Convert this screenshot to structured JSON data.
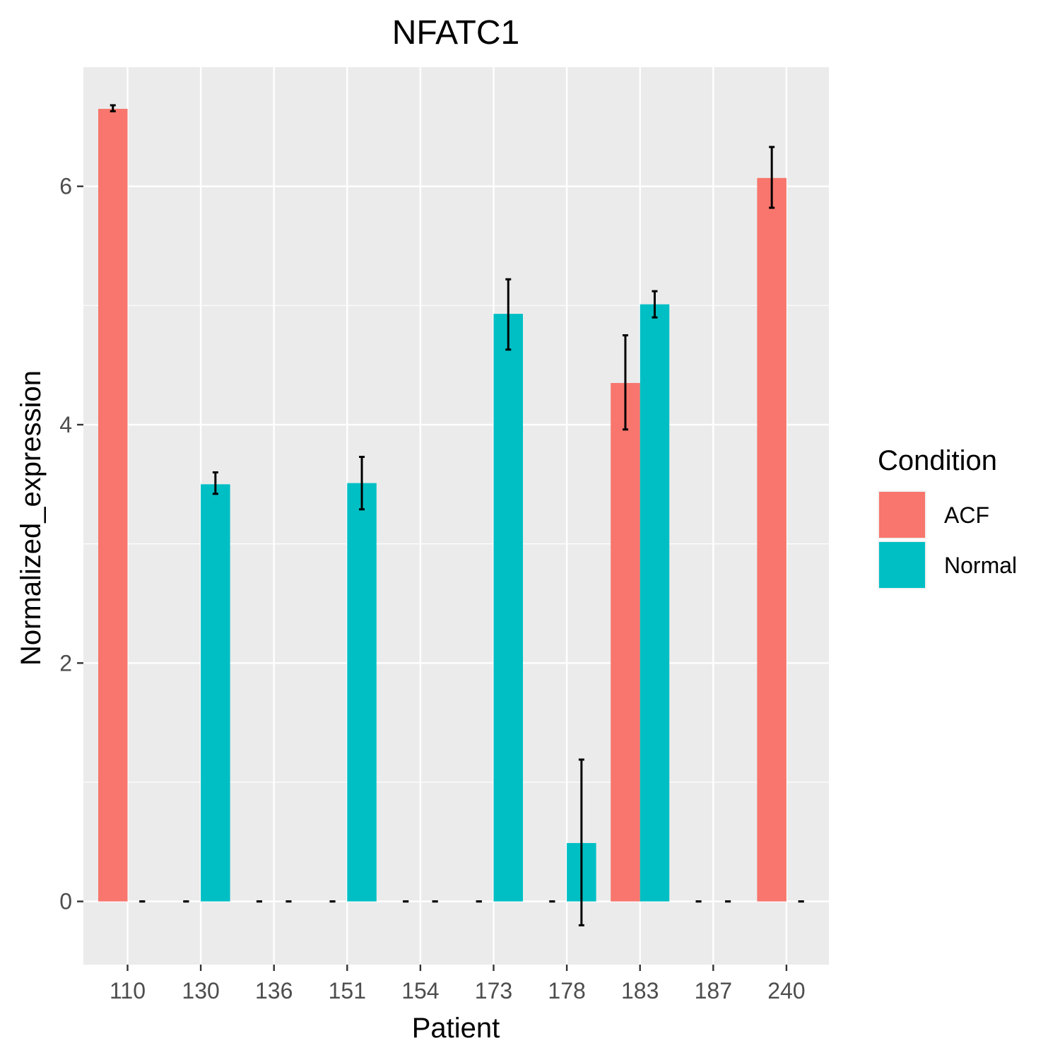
{
  "chart_data": {
    "type": "bar",
    "title": "NFATC1",
    "xlabel": "Patient",
    "ylabel": "Normalized_expression",
    "ylim": [
      -0.53,
      7.0
    ],
    "yticks": [
      0,
      2,
      4,
      6
    ],
    "grid": true,
    "legend": {
      "title": "Condition",
      "position": "right"
    },
    "categories": [
      "110",
      "130",
      "136",
      "151",
      "154",
      "173",
      "178",
      "183",
      "187",
      "240"
    ],
    "series": [
      {
        "name": "ACF",
        "color": "#F8766D",
        "values": [
          6.65,
          0,
          0,
          0,
          0,
          0,
          0,
          4.35,
          0,
          6.07
        ],
        "err_low": [
          6.63,
          0,
          0,
          0,
          0,
          0,
          0,
          3.96,
          0,
          5.82
        ],
        "err_high": [
          6.68,
          0,
          0,
          0,
          0,
          0,
          0,
          4.75,
          0,
          6.33
        ]
      },
      {
        "name": "Normal",
        "color": "#00BFC4",
        "values": [
          0,
          3.5,
          0,
          3.51,
          0,
          4.93,
          0.49,
          5.01,
          0,
          0
        ],
        "err_low": [
          0,
          3.42,
          0,
          3.29,
          0,
          4.63,
          -0.2,
          4.9,
          0,
          0
        ],
        "err_high": [
          0,
          3.6,
          0,
          3.73,
          0,
          5.22,
          1.19,
          5.12,
          0,
          0
        ]
      }
    ]
  }
}
